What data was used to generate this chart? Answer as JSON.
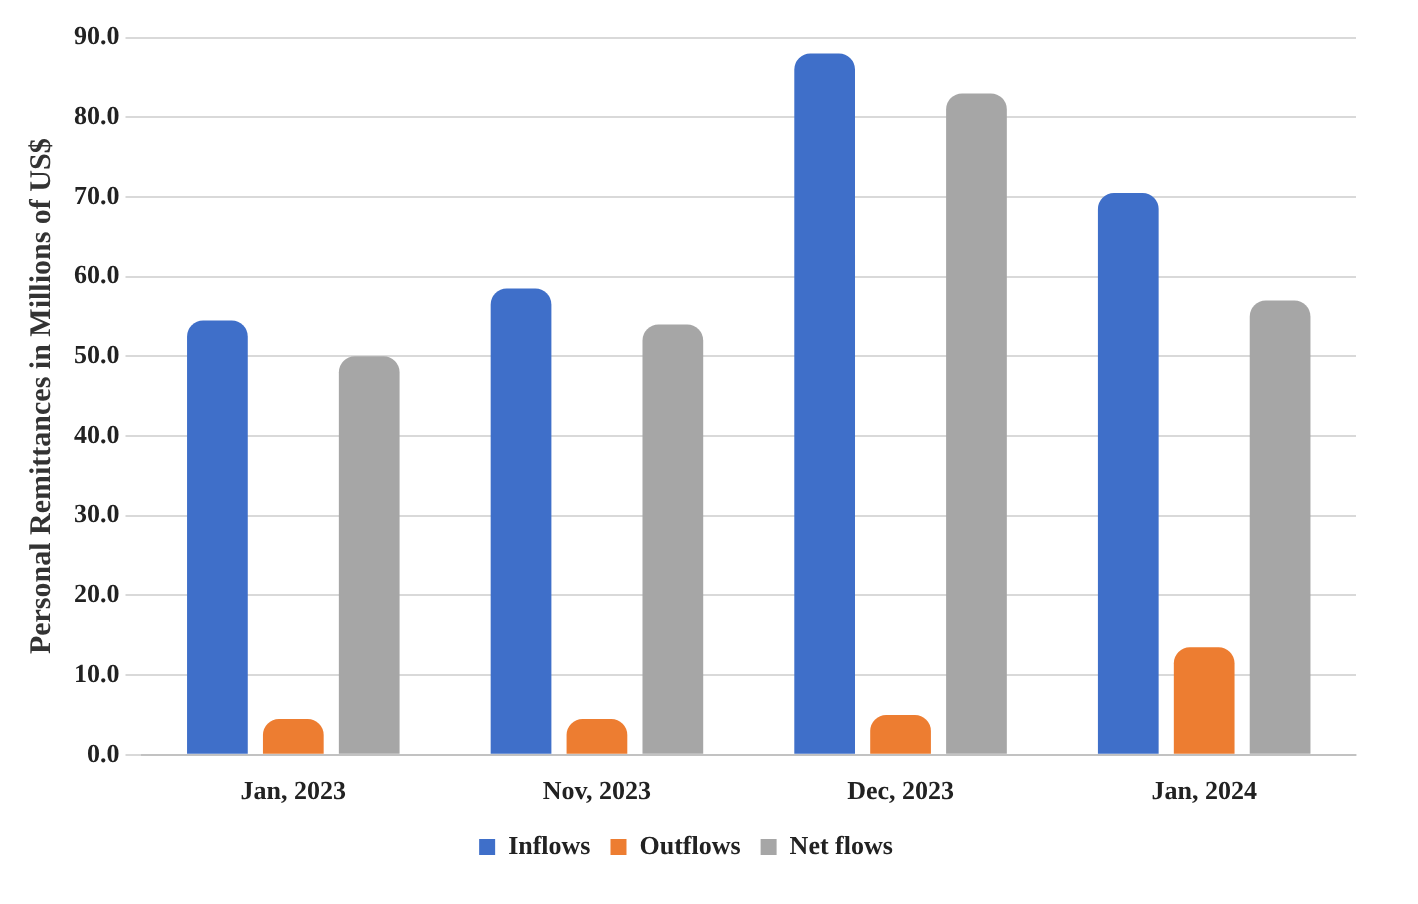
{
  "chart_data": {
    "type": "bar",
    "ylabel": "Personal Remittances in Millions of US$",
    "categories": [
      "Jan, 2023",
      "Nov, 2023",
      "Dec, 2023",
      "Jan, 2024"
    ],
    "series": [
      {
        "name": "Inflows",
        "color": "#3f6fc9",
        "values": [
          54.5,
          58.5,
          88,
          70.5
        ]
      },
      {
        "name": "Outflows",
        "color": "#ed7d31",
        "values": [
          4.5,
          4.5,
          5,
          13.5
        ]
      },
      {
        "name": "Net flows",
        "color": "#a6a6a6",
        "values": [
          50,
          54,
          83,
          57
        ]
      }
    ],
    "ylim": [
      0,
      90
    ],
    "yticks": [
      {
        "value": 0,
        "label": "0.0"
      },
      {
        "value": 10,
        "label": "10.0"
      },
      {
        "value": 20,
        "label": "20.0"
      },
      {
        "value": 30,
        "label": "30.0"
      },
      {
        "value": 40,
        "label": "40.0"
      },
      {
        "value": 50,
        "label": "50.0"
      },
      {
        "value": 60,
        "label": "60.0"
      },
      {
        "value": 70,
        "label": "70.0"
      },
      {
        "value": 80,
        "label": "80.0"
      },
      {
        "value": 90,
        "label": "90.0"
      }
    ],
    "grid": "y",
    "legend": "bottom"
  }
}
